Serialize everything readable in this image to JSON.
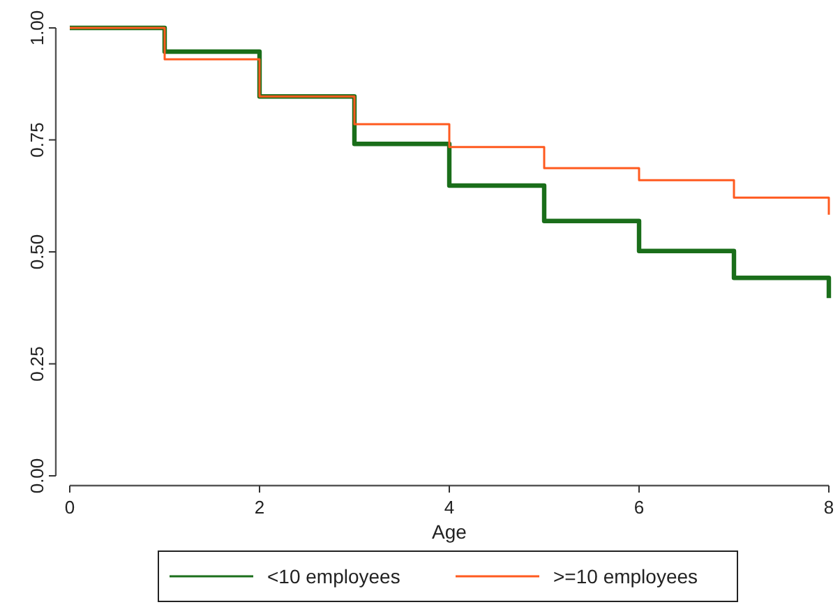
{
  "chart_data": {
    "type": "step",
    "xlabel": "Age",
    "x": [
      0,
      1,
      2,
      3,
      4,
      5,
      6,
      7,
      8
    ],
    "series": [
      {
        "name": "<10 employees",
        "color": "#1a6e1a",
        "values": [
          1.0,
          0.947,
          0.847,
          0.741,
          0.648,
          0.569,
          0.502,
          0.442,
          0.397
        ]
      },
      {
        "name": ">=10 employees",
        "color": "#ff5a1f",
        "values": [
          1.0,
          0.93,
          0.847,
          0.785,
          0.734,
          0.687,
          0.66,
          0.621,
          0.583
        ]
      }
    ],
    "xlim": [
      0,
      8
    ],
    "xticks": [
      0,
      2,
      4,
      6,
      8
    ],
    "ylim": [
      0,
      1
    ],
    "yticks": [
      {
        "value": 0,
        "label": "0.00"
      },
      {
        "value": 0.25,
        "label": "0.25"
      },
      {
        "value": 0.5,
        "label": "0.50"
      },
      {
        "value": 0.75,
        "label": "0.75"
      },
      {
        "value": 1,
        "label": "1.00"
      }
    ],
    "grid": false,
    "legend": "bottom"
  }
}
